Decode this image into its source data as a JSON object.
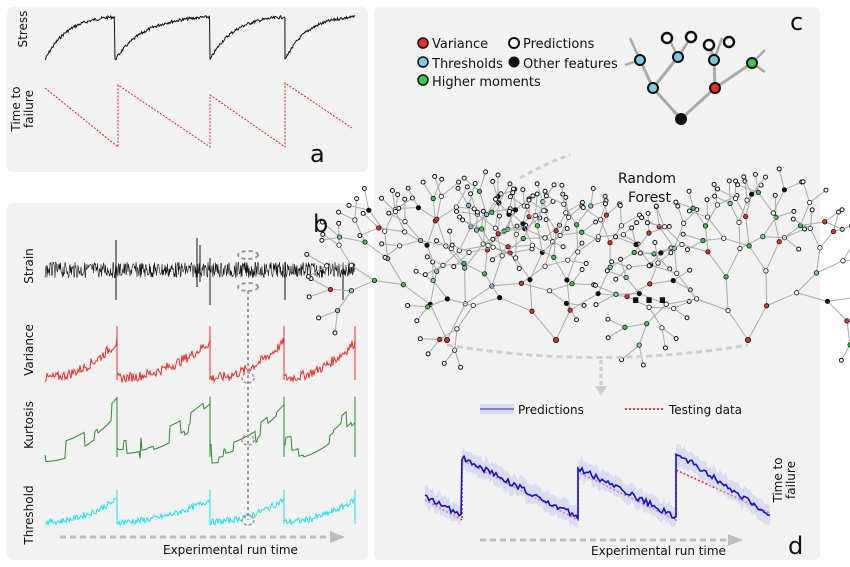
{
  "panels": {
    "a": {
      "letter": "a",
      "stress_label": "Stress",
      "ttf_label_1": "Time to",
      "ttf_label_2": "failure"
    },
    "b": {
      "letter": "b",
      "strain_label": "Strain",
      "variance_label": "Variance",
      "kurtosis_label": "Kurtosis",
      "threshold_label": "Threshold",
      "xlabel": "Experimental run time"
    },
    "c": {
      "letter": "c",
      "legend": {
        "variance": "Variance",
        "thresholds": "Thresholds",
        "higher_moments": "Higher moments",
        "predictions": "Predictions",
        "other_features": "Other features"
      },
      "forest_label_1": "Random",
      "forest_label_2": "Forest",
      "ellipsis": "..."
    },
    "d": {
      "letter": "d",
      "legend_predictions": "Predictions",
      "legend_testing": "Testing data",
      "ylabel_1": "Time to",
      "ylabel_2": "failure",
      "xlabel": "Experimental run time"
    }
  },
  "colors": {
    "panel_bg": "#f2f2f2",
    "variance": "#e8302b",
    "thresholds": "#7ec8e6",
    "higher_moments": "#3cc94a",
    "other_features": "#000000",
    "prediction_node": "#ffffff",
    "variance_curve": "#e8302b",
    "kurtosis_curve": "#2c8a2c",
    "threshold_curve": "#22e0ee",
    "prediction_line": "#1010cc",
    "prediction_band": "#c8c8f0",
    "testing_line": "#e02020",
    "arrow": "#bdbdbd"
  }
}
